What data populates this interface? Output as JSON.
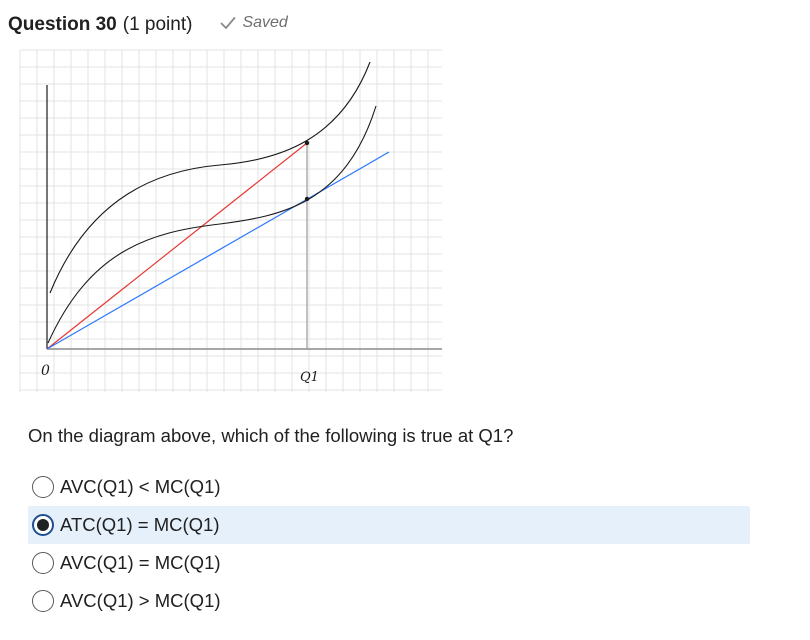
{
  "question": {
    "title": "Question 30",
    "points": "(1 point)",
    "status": "Saved",
    "status_icon": "checkmark-icon"
  },
  "diagram": {
    "origin_label": "0",
    "q1_label": "Q1",
    "colors": {
      "curves": "#1a1a1a",
      "atc_ray": "#e53935",
      "avc_ray": "#2979ff",
      "grid": "#e3e3e3",
      "axis": "#8a8a8a"
    }
  },
  "prompt": "On the diagram above, which of the following is true at Q1?",
  "options": [
    {
      "label": "AVC(Q1) < MC(Q1)",
      "selected": false
    },
    {
      "label": "ATC(Q1) = MC(Q1)",
      "selected": true
    },
    {
      "label": "AVC(Q1) = MC(Q1)",
      "selected": false
    },
    {
      "label": "AVC(Q1) > MC(Q1)",
      "selected": false
    }
  ]
}
